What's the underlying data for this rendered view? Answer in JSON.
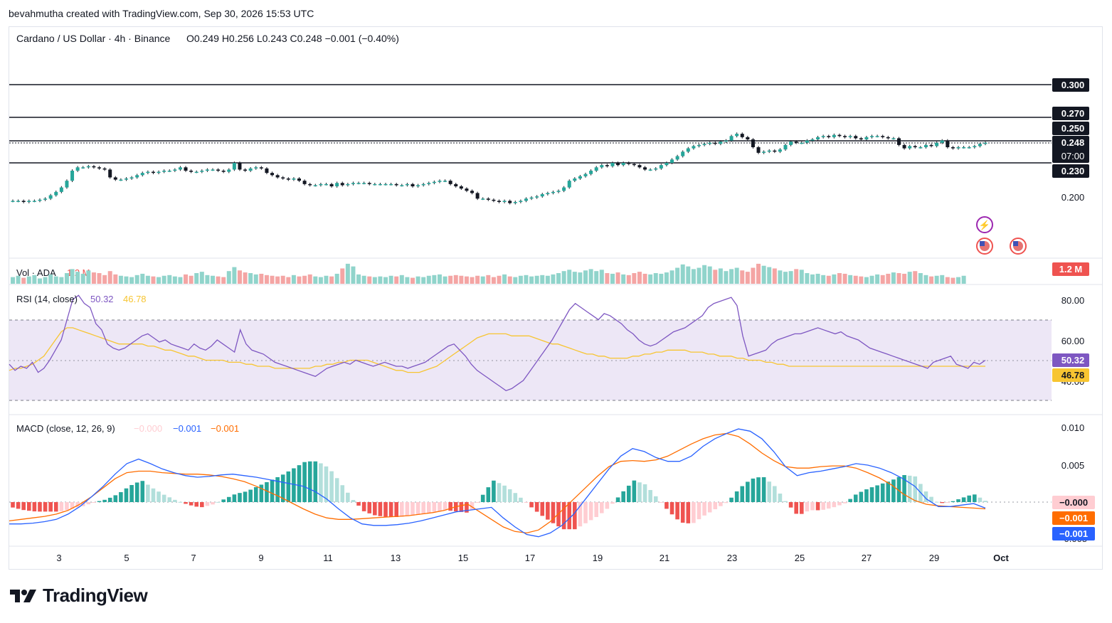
{
  "header": {
    "attribution": "bevahmutha created with TradingView.com, Sep 30, 2026 15:53 UTC"
  },
  "main_panel": {
    "legend": "Cardano / US Dollar · 4h · Binance",
    "ohlc": "O0.249  H0.256  L0.243  C0.248  −0.001 (−0.40%)",
    "price_ticks": [
      "0.200"
    ],
    "level_labels": [
      "0.300",
      "0.270",
      "0.250",
      "0.248",
      "07:00",
      "0.230"
    ]
  },
  "volume_panel": {
    "legend": "Vol · ADA",
    "legend_value": "1.2 M",
    "badge": "1.2 M"
  },
  "rsi_panel": {
    "legend": "RSI (14, close)",
    "rsi_value": "50.32",
    "ma_value": "46.78",
    "ticks": [
      "80.00",
      "60.00",
      "40.00"
    ],
    "badge_rsi": "50.32",
    "badge_ma": "46.78"
  },
  "macd_panel": {
    "legend": "MACD (close, 12, 26, 9)",
    "hist_value": "−0.000",
    "macd_value": "−0.001",
    "signal_value": "−0.001",
    "ticks": [
      "0.010",
      "0.005",
      "−0.005"
    ],
    "badge_hist": "−0.000",
    "badge_signal": "−0.001",
    "badge_macd": "−0.001"
  },
  "time_axis": [
    "3",
    "5",
    "7",
    "9",
    "11",
    "13",
    "15",
    "17",
    "19",
    "21",
    "23",
    "25",
    "27",
    "29",
    "Oct"
  ],
  "footer": {
    "brand": "TradingView"
  },
  "colors": {
    "up": "#26a69a",
    "down": "#ef5350",
    "candle": "#131722",
    "vol_up": "#90d4cb",
    "vol_down": "#f4a5a4",
    "rsi": "#7e57c2",
    "rsi_ma": "#f7c531",
    "rsi_band": "#ede7f6",
    "macd": "#2962ff",
    "signal": "#ff6d00",
    "hist_up_strong": "#26a69a",
    "hist_up_weak": "#b2dfdb",
    "hist_down_strong": "#ef5350",
    "hist_down_weak": "#ffcdd2"
  },
  "chart_data": {
    "type": "candlestick",
    "symbol": "Cardano / US Dollar",
    "interval": "4h",
    "exchange": "Binance",
    "ylim": [
      0.18,
      0.31
    ],
    "horizontal_levels": [
      0.3,
      0.27,
      0.25,
      0.23
    ],
    "last_close": 0.248,
    "close_series": [
      0.196,
      0.196,
      0.195,
      0.196,
      0.196,
      0.197,
      0.198,
      0.201,
      0.204,
      0.208,
      0.214,
      0.223,
      0.226,
      0.226,
      0.227,
      0.226,
      0.225,
      0.224,
      0.217,
      0.215,
      0.215,
      0.216,
      0.217,
      0.219,
      0.221,
      0.222,
      0.221,
      0.222,
      0.223,
      0.223,
      0.224,
      0.226,
      0.223,
      0.222,
      0.222,
      0.223,
      0.224,
      0.224,
      0.223,
      0.222,
      0.224,
      0.23,
      0.224,
      0.223,
      0.225,
      0.226,
      0.225,
      0.221,
      0.219,
      0.217,
      0.216,
      0.215,
      0.216,
      0.214,
      0.211,
      0.21,
      0.21,
      0.211,
      0.211,
      0.209,
      0.212,
      0.21,
      0.211,
      0.212,
      0.212,
      0.212,
      0.211,
      0.211,
      0.211,
      0.211,
      0.211,
      0.21,
      0.21,
      0.211,
      0.209,
      0.21,
      0.211,
      0.212,
      0.213,
      0.214,
      0.214,
      0.211,
      0.209,
      0.207,
      0.205,
      0.203,
      0.198,
      0.198,
      0.197,
      0.196,
      0.195,
      0.196,
      0.194,
      0.195,
      0.196,
      0.198,
      0.199,
      0.2,
      0.202,
      0.203,
      0.204,
      0.205,
      0.208,
      0.214,
      0.216,
      0.218,
      0.22,
      0.223,
      0.226,
      0.228,
      0.227,
      0.23,
      0.228,
      0.23,
      0.229,
      0.228,
      0.226,
      0.224,
      0.224,
      0.225,
      0.228,
      0.23,
      0.233,
      0.236,
      0.24,
      0.243,
      0.245,
      0.246,
      0.247,
      0.248,
      0.247,
      0.249,
      0.25,
      0.254,
      0.256,
      0.253,
      0.251,
      0.244,
      0.239,
      0.24,
      0.241,
      0.24,
      0.242,
      0.246,
      0.249,
      0.248,
      0.248,
      0.25,
      0.251,
      0.253,
      0.254,
      0.253,
      0.255,
      0.254,
      0.253,
      0.254,
      0.252,
      0.251,
      0.253,
      0.254,
      0.254,
      0.253,
      0.252,
      0.252,
      0.246,
      0.243,
      0.245,
      0.244,
      0.244,
      0.246,
      0.245,
      0.248,
      0.25,
      0.244,
      0.243,
      0.244,
      0.244,
      0.244,
      0.245,
      0.247,
      0.248
    ],
    "volume_series": [
      1.0,
      1.2,
      0.9,
      1.1,
      1.3,
      0.8,
      1.0,
      1.4,
      1.1,
      1.0,
      1.6,
      2.2,
      1.8,
      1.5,
      2.0,
      1.7,
      1.6,
      1.3,
      1.9,
      1.4,
      1.2,
      1.1,
      1.0,
      1.3,
      1.5,
      1.2,
      1.1,
      1.0,
      1.2,
      1.3,
      1.1,
      1.0,
      1.4,
      1.2,
      1.6,
      1.8,
      1.3,
      1.2,
      1.1,
      1.0,
      1.9,
      2.5,
      2.0,
      1.7,
      1.6,
      1.4,
      1.5,
      1.3,
      1.2,
      1.1,
      1.2,
      1.0,
      1.3,
      1.1,
      1.2,
      1.4,
      1.1,
      1.0,
      1.2,
      1.1,
      1.5,
      2.3,
      3.0,
      2.6,
      1.4,
      1.2,
      1.1,
      1.0,
      1.1,
      1.0,
      1.2,
      1.1,
      1.3,
      1.0,
      0.9,
      1.1,
      1.0,
      1.2,
      1.3,
      1.4,
      1.1,
      1.2,
      1.3,
      1.2,
      1.1,
      1.0,
      1.2,
      1.1,
      1.3,
      1.0,
      1.2,
      1.4,
      1.1,
      1.0,
      1.2,
      1.3,
      1.1,
      1.2,
      1.3,
      1.2,
      1.4,
      1.6,
      1.9,
      2.1,
      1.8,
      1.7,
      2.0,
      2.2,
      1.9,
      2.1,
      1.6,
      1.5,
      1.7,
      1.4,
      1.3,
      1.6,
      1.8,
      1.5,
      1.4,
      1.6,
      1.5,
      1.7,
      2.0,
      2.4,
      2.9,
      2.6,
      2.2,
      2.4,
      2.8,
      2.6,
      2.1,
      2.3,
      1.9,
      2.2,
      2.4,
      2.0,
      1.8,
      2.4,
      3.0,
      2.7,
      2.5,
      2.3,
      2.0,
      1.8,
      1.9,
      2.2,
      2.1,
      1.6,
      1.4,
      1.5,
      1.3,
      1.2,
      1.4,
      1.6,
      1.5,
      1.3,
      1.2,
      1.1,
      1.0,
      1.2,
      1.4,
      1.3,
      1.5,
      1.7,
      1.6,
      1.5,
      1.8,
      1.9,
      1.6,
      1.3,
      1.1,
      1.2,
      1.3,
      1.0,
      0.9,
      1.0,
      1.2
    ],
    "rsi_series": [
      48,
      45,
      47,
      46,
      49,
      44,
      46,
      50,
      55,
      60,
      70,
      80,
      82,
      78,
      76,
      68,
      65,
      58,
      56,
      55,
      56,
      58,
      60,
      62,
      63,
      61,
      59,
      60,
      58,
      57,
      56,
      55,
      58,
      56,
      55,
      57,
      60,
      58,
      56,
      54,
      65,
      58,
      55,
      54,
      53,
      51,
      49,
      48,
      47,
      46,
      45,
      44,
      43,
      42,
      44,
      46,
      47,
      48,
      49,
      48,
      50,
      49,
      48,
      47,
      48,
      49,
      48,
      47,
      47,
      46,
      47,
      48,
      49,
      51,
      53,
      55,
      57,
      58,
      55,
      52,
      48,
      45,
      43,
      41,
      39,
      37,
      35,
      36,
      38,
      40,
      44,
      48,
      52,
      56,
      60,
      65,
      70,
      75,
      78,
      76,
      74,
      72,
      70,
      73,
      72,
      70,
      68,
      65,
      63,
      60,
      58,
      57,
      58,
      60,
      62,
      64,
      65,
      66,
      68,
      70,
      72,
      76,
      78,
      79,
      80,
      81,
      77,
      62,
      52,
      53,
      54,
      55,
      58,
      60,
      61,
      62,
      63,
      63,
      64,
      65,
      66,
      65,
      64,
      63,
      64,
      62,
      61,
      60,
      58,
      56,
      55,
      54,
      53,
      52,
      51,
      50,
      49,
      48,
      47,
      46,
      49,
      50,
      51,
      52,
      48,
      47,
      46,
      49,
      48,
      50
    ],
    "rsi_ma_series": [
      45,
      46,
      46,
      47,
      48,
      50,
      52,
      56,
      60,
      64,
      66,
      66,
      65,
      64,
      63,
      62,
      61,
      60,
      59,
      58,
      58,
      58,
      58,
      58,
      57,
      57,
      56,
      55,
      55,
      54,
      53,
      52,
      52,
      51,
      50,
      50,
      50,
      50,
      49,
      49,
      49,
      48,
      48,
      47,
      47,
      47,
      46,
      46,
      46,
      46,
      46,
      46,
      46,
      47,
      47,
      48,
      48,
      49,
      49,
      50,
      50,
      50,
      50,
      49,
      48,
      47,
      46,
      45,
      45,
      44,
      44,
      44,
      45,
      46,
      47,
      49,
      51,
      53,
      55,
      57,
      59,
      61,
      62,
      63,
      63,
      63,
      63,
      62,
      62,
      62,
      62,
      61,
      60,
      59,
      58,
      58,
      57,
      56,
      55,
      54,
      53,
      53,
      52,
      52,
      51,
      51,
      51,
      51,
      52,
      52,
      53,
      53,
      54,
      54,
      55,
      55,
      55,
      55,
      54,
      54,
      54,
      53,
      53,
      52,
      52,
      52,
      51,
      51,
      50,
      50,
      50,
      49,
      49,
      48,
      48,
      47,
      47,
      47,
      47,
      47,
      47,
      47,
      47,
      47,
      47,
      47,
      47,
      47,
      47,
      47,
      47,
      47,
      47,
      47,
      47,
      47,
      47,
      47,
      47,
      47,
      47,
      47,
      47,
      47,
      47,
      47,
      47,
      47,
      47,
      47
    ],
    "macd_series": [
      -0.0028,
      -0.0028,
      -0.0027,
      -0.0025,
      -0.0022,
      -0.0015,
      -0.0005,
      0.0008,
      0.0022,
      0.0038,
      0.0052,
      0.0058,
      0.0052,
      0.0045,
      0.004,
      0.0036,
      0.0034,
      0.0035,
      0.0037,
      0.0038,
      0.0036,
      0.0034,
      0.0031,
      0.0028,
      0.0025,
      0.0022,
      0.0015,
      0.0005,
      -0.0008,
      -0.002,
      -0.0028,
      -0.003,
      -0.003,
      -0.0029,
      -0.0027,
      -0.0024,
      -0.002,
      -0.0016,
      -0.0012,
      -0.001,
      -0.0008,
      -0.0006,
      -0.002,
      -0.0032,
      -0.0042,
      -0.0045,
      -0.004,
      -0.003,
      -0.0015,
      0.0005,
      0.0025,
      0.0045,
      0.0062,
      0.0072,
      0.0068,
      0.006,
      0.0055,
      0.0055,
      0.0062,
      0.0075,
      0.0085,
      0.0092,
      0.0098,
      0.0095,
      0.0085,
      0.0068,
      0.0048,
      0.0036,
      0.004,
      0.0042,
      0.0045,
      0.0048,
      0.0052,
      0.005,
      0.0046,
      0.004,
      0.0032,
      0.0022,
      0.0005,
      -0.0005,
      -0.0005,
      -0.0003,
      -0.0001,
      -0.0007
    ],
    "signal_series": [
      -0.0024,
      -0.0022,
      -0.002,
      -0.0018,
      -0.0015,
      -0.001,
      -0.0002,
      0.0008,
      0.002,
      0.0032,
      0.004,
      0.0042,
      0.0042,
      0.004,
      0.0039,
      0.0038,
      0.0038,
      0.0037,
      0.0035,
      0.0032,
      0.0028,
      0.0022,
      0.0015,
      0.0008,
      0.0,
      -0.0008,
      -0.0015,
      -0.002,
      -0.0022,
      -0.0022,
      -0.0021,
      -0.002,
      -0.0019,
      -0.0018,
      -0.0017,
      -0.0015,
      -0.0013,
      -0.001,
      -0.0005,
      -0.0002,
      -0.0012,
      -0.0022,
      -0.0032,
      -0.0038,
      -0.004,
      -0.0036,
      -0.0025,
      -0.001,
      0.0005,
      0.002,
      0.0035,
      0.0048,
      0.0055,
      0.0056,
      0.0055,
      0.0057,
      0.0062,
      0.007,
      0.0078,
      0.0085,
      0.009,
      0.0092,
      0.0088,
      0.0078,
      0.0066,
      0.0056,
      0.0048,
      0.0046,
      0.0046,
      0.0048,
      0.0049,
      0.0049,
      0.0046,
      0.004,
      0.0033,
      0.0024,
      0.0012,
      0.0003,
      -0.0002,
      -0.0004,
      -0.0005,
      -0.0006,
      -0.0007,
      -0.0008
    ]
  }
}
